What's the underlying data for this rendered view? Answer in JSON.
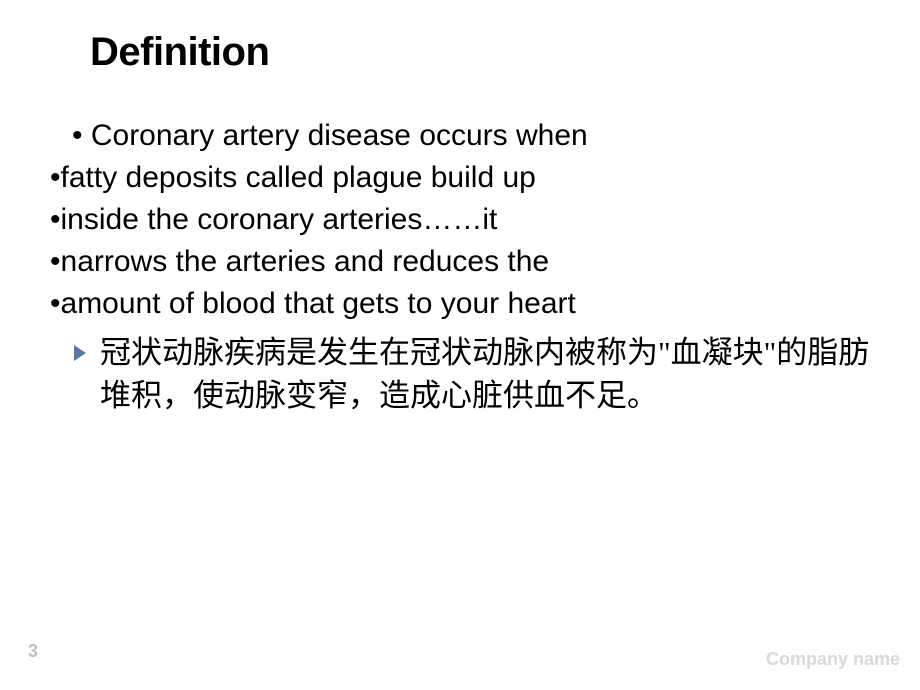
{
  "title": "Definition",
  "bullets": {
    "line1": "• Coronary artery disease occurs when",
    "line2": "•fatty deposits called plague build up",
    "line3": "•inside the coronary arteries……it",
    "line4": "•narrows the arteries and reduces the",
    "line5": "•amount of blood that gets to your heart"
  },
  "chinese": "冠状动脉疾病是发生在冠状动脉内被称为\"血凝块\"的脂肪堆积，使动脉变窄，造成心脏供血不足。",
  "page_number": "3",
  "company_name": "Company name",
  "colors": {
    "title": "#000000",
    "text": "#000000",
    "bullet_icon": "#5a7aa5",
    "page_number": "#bfbfbf",
    "company_name": "#d9d9d9",
    "background": "#ffffff"
  },
  "fonts": {
    "title_size": 40,
    "body_size": 30,
    "chinese_size": 31,
    "footer_size": 18
  }
}
